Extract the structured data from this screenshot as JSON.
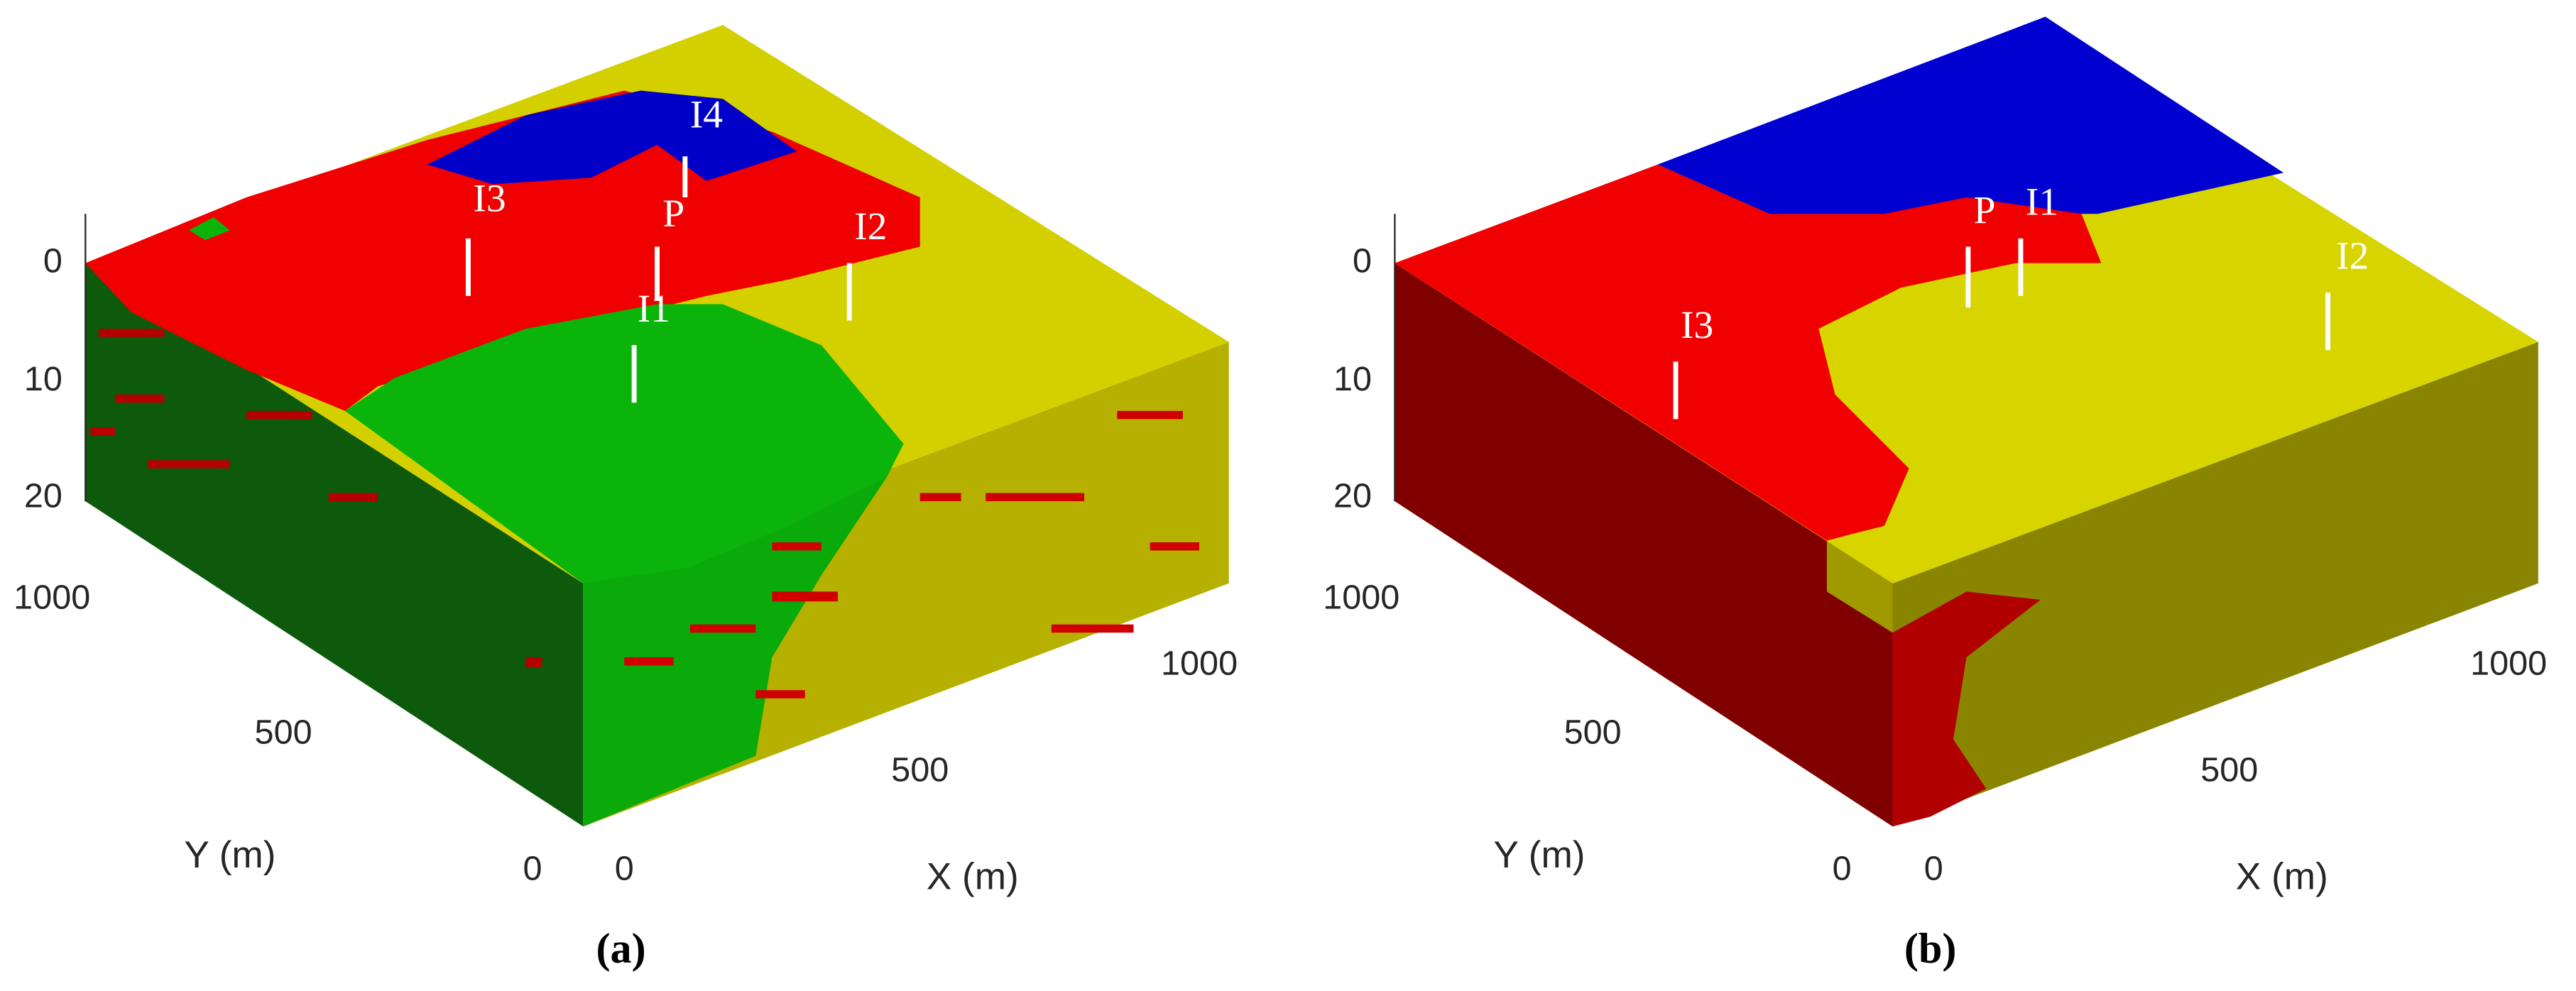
{
  "panels": [
    {
      "label": "(a)",
      "z_ticks": [
        0,
        10,
        20
      ],
      "y_ticks": [
        1000,
        500,
        0
      ],
      "x_ticks": [
        0,
        500,
        1000
      ],
      "y_label": "Y (m)",
      "x_label": "X (m)",
      "wells": [
        "I3",
        "P",
        "I4",
        "I2",
        "I1"
      ]
    },
    {
      "label": "(b)",
      "z_ticks": [
        0,
        10,
        20
      ],
      "y_ticks": [
        1000,
        500,
        0
      ],
      "x_ticks": [
        0,
        500,
        1000
      ],
      "y_label": "Y (m)",
      "x_label": "X (m)",
      "wells": [
        "I3",
        "P",
        "I1",
        "I2"
      ]
    }
  ]
}
